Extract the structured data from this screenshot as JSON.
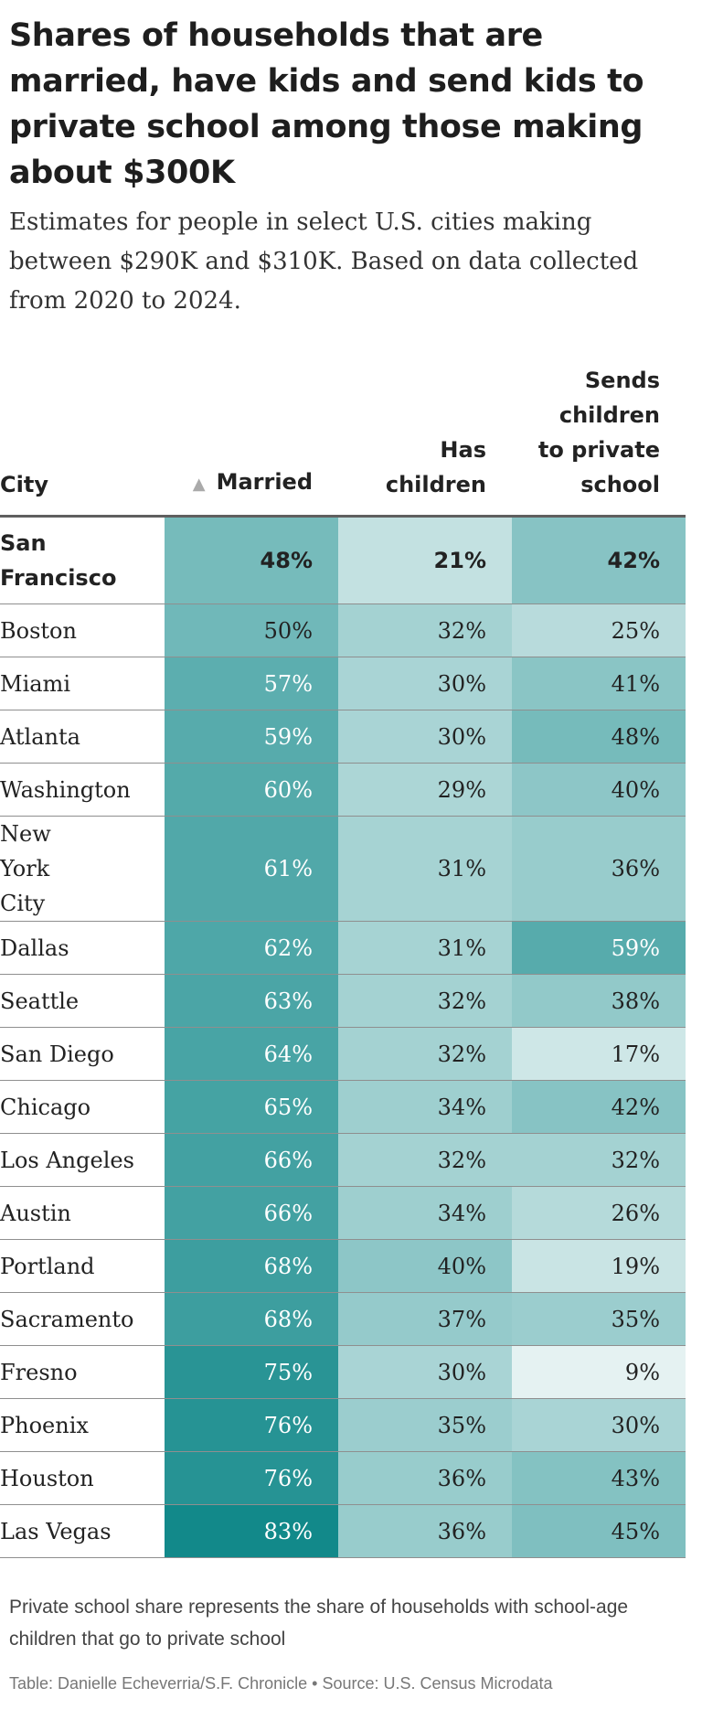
{
  "title": "Shares of households that are married, have kids and send kids to private school among those making about $300K",
  "subtitle": "Estimates for people in select U.S. cities making between $290K and $310K. Based on data collected from 2020 to 2024.",
  "note": "Private school share represents the share of households with school-age children that go to private school",
  "credit": "Table: Danielle Echeverria/S.F. Chronicle • Source: U.S. Census Microdata",
  "sort_indicator": "▲",
  "colors": {
    "scale_low": "#ffffff",
    "scale_high": "#12898a",
    "text_dark": "#222222",
    "text_light": "#ffffff"
  },
  "chart_data": {
    "type": "table",
    "columns": [
      "City",
      "Married",
      "Has children",
      "Sends children to private school"
    ],
    "sorted_by": "Married",
    "sort_order": "ascending",
    "rows": [
      {
        "city": "San Francisco",
        "married": "48%",
        "children": "21%",
        "private": "42%"
      },
      {
        "city": "Boston",
        "married": "50%",
        "children": "32%",
        "private": "25%"
      },
      {
        "city": "Miami",
        "married": "57%",
        "children": "30%",
        "private": "41%"
      },
      {
        "city": "Atlanta",
        "married": "59%",
        "children": "30%",
        "private": "48%"
      },
      {
        "city": "Washington",
        "married": "60%",
        "children": "29%",
        "private": "40%"
      },
      {
        "city": "New York City",
        "married": "61%",
        "children": "31%",
        "private": "36%"
      },
      {
        "city": "Dallas",
        "married": "62%",
        "children": "31%",
        "private": "59%"
      },
      {
        "city": "Seattle",
        "married": "63%",
        "children": "32%",
        "private": "38%"
      },
      {
        "city": "San Diego",
        "married": "64%",
        "children": "32%",
        "private": "17%"
      },
      {
        "city": "Chicago",
        "married": "65%",
        "children": "34%",
        "private": "42%"
      },
      {
        "city": "Los Angeles",
        "married": "66%",
        "children": "32%",
        "private": "32%"
      },
      {
        "city": "Austin",
        "married": "66%",
        "children": "34%",
        "private": "26%"
      },
      {
        "city": "Portland",
        "married": "68%",
        "children": "40%",
        "private": "19%"
      },
      {
        "city": "Sacramento",
        "married": "68%",
        "children": "37%",
        "private": "35%"
      },
      {
        "city": "Fresno",
        "married": "75%",
        "children": "30%",
        "private": "9%"
      },
      {
        "city": "Phoenix",
        "married": "76%",
        "children": "35%",
        "private": "30%"
      },
      {
        "city": "Houston",
        "married": "76%",
        "children": "36%",
        "private": "43%"
      },
      {
        "city": "Las Vegas",
        "married": "83%",
        "children": "36%",
        "private": "45%"
      }
    ]
  }
}
